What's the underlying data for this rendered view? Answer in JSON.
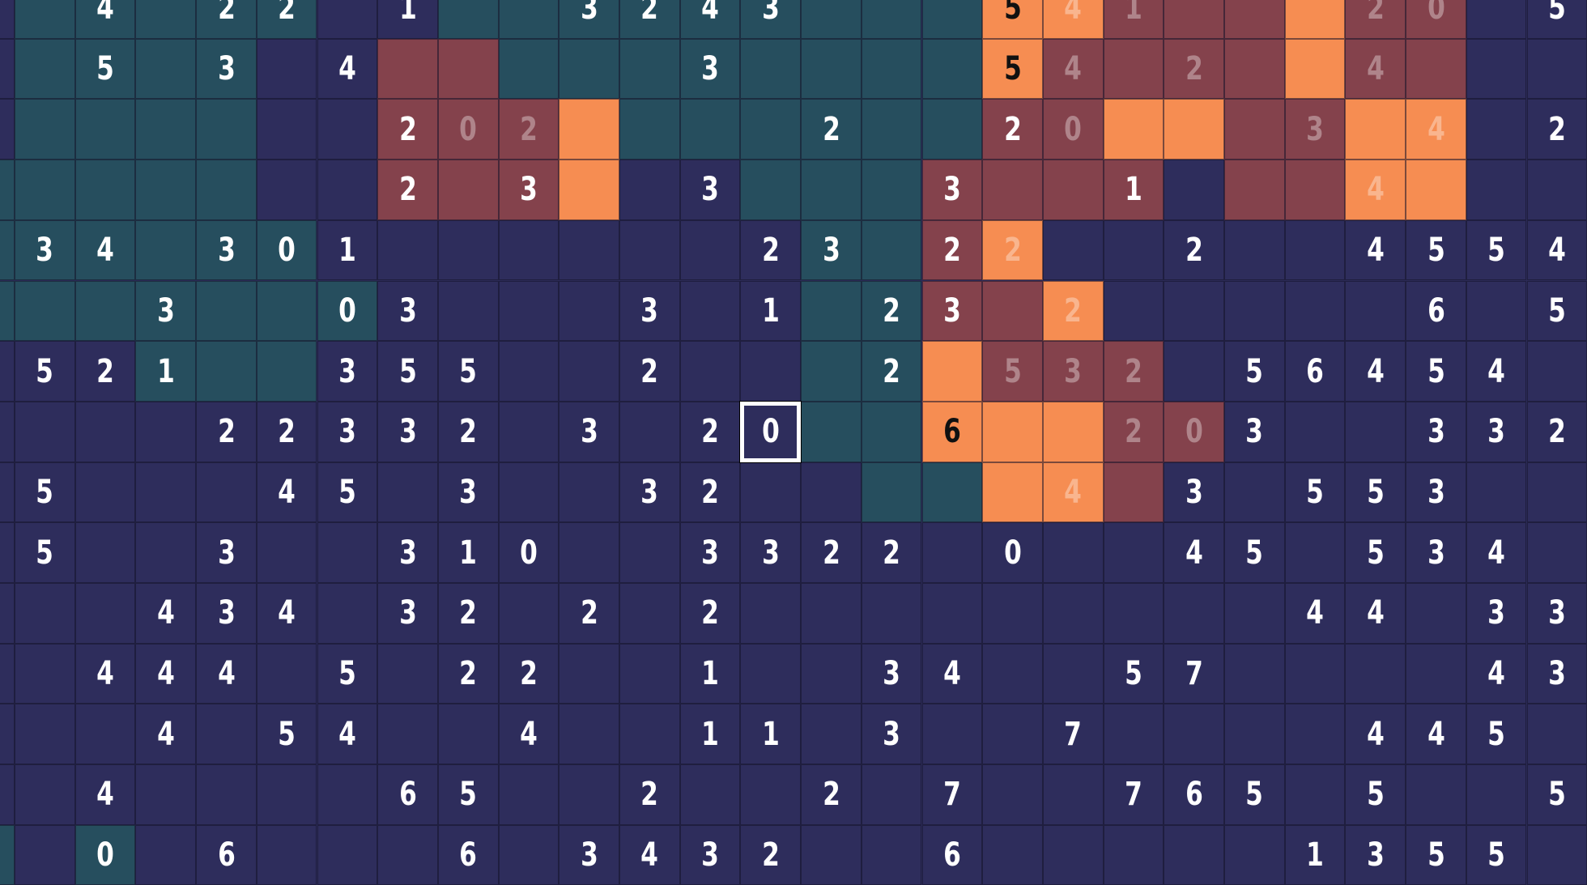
{
  "palette": {
    "N": "#2e2d5c",
    "T": "#264e5e",
    "M": "#84424c",
    "O": "#f68d52"
  },
  "selected": {
    "row": 7,
    "col": 12
  },
  "board": {
    "rows": [
      {
        "colors": "NTTTTTNNTTTTTTTTTOOMMMOMMNN",
        "nums": {
          "1": "4",
          "3": "2",
          "4": "2",
          "6": "1",
          "9": "3",
          "10": "2",
          "11": "4",
          "12": "3",
          "16": "5",
          "17": "4",
          "18": "1",
          "22": "2",
          "23": "0",
          "25": "5"
        },
        "faded": [
          17,
          18,
          22,
          23
        ],
        "dark": [
          16
        ]
      },
      {
        "colors": "NTTTTNNMMTTTTTTTTOMMMMOMMNN",
        "nums": {
          "1": "5",
          "3": "3",
          "5": "4",
          "11": "3",
          "16": "5",
          "17": "4",
          "19": "2",
          "22": "4"
        },
        "faded": [
          17,
          19,
          22
        ],
        "dark": [
          16
        ]
      },
      {
        "colors": "NTTTTNNMMMOTTTTTTMMOOMMOONN",
        "nums": {
          "6": "2",
          "7": "0",
          "8": "2",
          "13": "2",
          "16": "2",
          "17": "0",
          "21": "3",
          "23": "4",
          "25": "2"
        },
        "faded": [
          7,
          8,
          17,
          21,
          23
        ],
        "dark": []
      },
      {
        "colors": "TTTTTNNMMMONNTTTMMMMNMMOONN",
        "nums": {
          "6": "2",
          "8": "3",
          "11": "3",
          "15": "3",
          "18": "1",
          "22": "4"
        },
        "faded": [
          22
        ],
        "dark": []
      },
      {
        "colors": "TTTTTTNNNNNNNNTTMONNNNNNNNN",
        "nums": {
          "0": "3",
          "1": "4",
          "3": "3",
          "4": "0",
          "5": "1",
          "12": "2",
          "13": "3",
          "15": "2",
          "16": "2",
          "19": "2",
          "22": "4",
          "23": "5",
          "24": "5",
          "25": "4"
        },
        "faded": [
          16
        ],
        "dark": []
      },
      {
        "colors": "TTTTTTTNNNNNNNTTMMONNNNNNNN",
        "nums": {
          "2": "3",
          "5": "0",
          "6": "3",
          "10": "3",
          "12": "1",
          "14": "2",
          "15": "3",
          "17": "2",
          "23": "6",
          "25": "5"
        },
        "faded": [
          17
        ],
        "dark": []
      },
      {
        "colors": "NNNTTTNNNNNNNNTTOMMMNNNNNNN",
        "nums": {
          "0": "5",
          "1": "2",
          "2": "1",
          "5": "3",
          "6": "5",
          "7": "5",
          "10": "2",
          "14": "2",
          "16": "5",
          "17": "3",
          "18": "2",
          "20": "5",
          "21": "6",
          "22": "4",
          "23": "5",
          "24": "4"
        },
        "faded": [
          16,
          17,
          18
        ],
        "dark": []
      },
      {
        "colors": "NNNNNNNNNNNNNNTTOOOMMNNNNNN",
        "nums": {
          "3": "2",
          "4": "2",
          "5": "3",
          "6": "3",
          "7": "2",
          "9": "3",
          "11": "2",
          "12": "0",
          "15": "6",
          "18": "2",
          "19": "0",
          "20": "3",
          "23": "3",
          "24": "3",
          "25": "2"
        },
        "faded": [
          18,
          19
        ],
        "dark": [
          15
        ]
      },
      {
        "colors": "NNNNNNNNNNNNNNNTTOOMNNNNNNN",
        "nums": {
          "0": "5",
          "4": "4",
          "5": "5",
          "7": "3",
          "10": "3",
          "11": "2",
          "17": "4",
          "19": "3",
          "21": "5",
          "22": "5",
          "23": "3"
        },
        "faded": [
          17
        ],
        "dark": []
      },
      {
        "colors": "NNNNNNNNNNNNNNNNNNNNNNNNNNN",
        "nums": {
          "0": "5",
          "3": "3",
          "6": "3",
          "7": "1",
          "8": "0",
          "11": "3",
          "12": "3",
          "13": "2",
          "14": "2",
          "16": "0",
          "19": "4",
          "20": "5",
          "22": "5",
          "23": "3",
          "24": "4"
        },
        "faded": [],
        "dark": []
      },
      {
        "colors": "NNNNNNNNNNNNNNNNNNNNNNNNNNN",
        "nums": {
          "2": "4",
          "3": "3",
          "4": "4",
          "6": "3",
          "7": "2",
          "9": "2",
          "11": "2",
          "21": "4",
          "22": "4",
          "24": "3",
          "25": "3"
        },
        "faded": [],
        "dark": []
      },
      {
        "colors": "NNNNNNNNNNNNNNNNNNNNNNNNNNN",
        "nums": {
          "1": "4",
          "2": "4",
          "3": "4",
          "5": "5",
          "7": "2",
          "8": "2",
          "11": "1",
          "14": "3",
          "15": "4",
          "18": "5",
          "19": "7",
          "24": "4",
          "25": "3"
        },
        "faded": [],
        "dark": []
      },
      {
        "colors": "NNNNNNNNNNNNNNNNNNNNNNNNNNN",
        "nums": {
          "2": "4",
          "4": "5",
          "5": "4",
          "8": "4",
          "11": "1",
          "12": "1",
          "14": "3",
          "17": "7",
          "22": "4",
          "23": "4",
          "24": "5"
        },
        "faded": [],
        "dark": []
      },
      {
        "colors": "NNNNNNNNNNNNNNNNNNNNNNNNNNN",
        "nums": {
          "1": "4",
          "6": "6",
          "7": "5",
          "10": "2",
          "13": "2",
          "15": "7",
          "18": "7",
          "19": "6",
          "20": "5",
          "22": "5",
          "25": "5"
        },
        "faded": [],
        "dark": []
      },
      {
        "colors": "TNTNNNNNNNNNNNNNNNNNNNNNNNN",
        "nums": {
          "1": "0",
          "3": "6",
          "7": "6",
          "9": "3",
          "10": "4",
          "11": "3",
          "12": "2",
          "15": "6",
          "21": "1",
          "22": "3",
          "23": "5",
          "24": "5"
        },
        "faded": [],
        "dark": []
      }
    ]
  }
}
